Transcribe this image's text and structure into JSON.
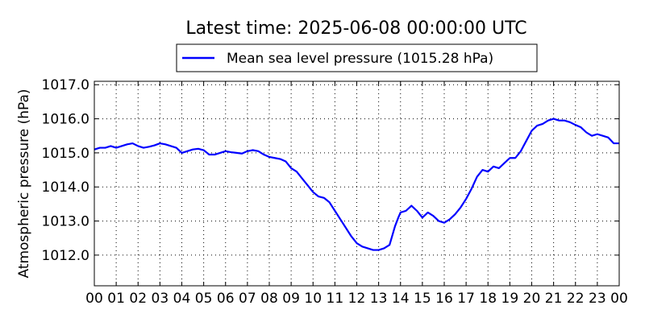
{
  "chart_data": {
    "type": "line",
    "title": "Latest time: 2025-06-08 00:00:00 UTC",
    "ylabel": "Atmospheric pressure (hPa)",
    "xlabel": "",
    "ylim": [
      1011.1,
      1017.1
    ],
    "xlim": [
      0,
      24
    ],
    "grid": true,
    "legend_position": "top-center, above plot",
    "x_tick_values": [
      0,
      1,
      2,
      3,
      4,
      5,
      6,
      7,
      8,
      9,
      10,
      11,
      12,
      13,
      14,
      15,
      16,
      17,
      18,
      19,
      20,
      21,
      22,
      23,
      24
    ],
    "x_tick_labels": [
      "00",
      "01",
      "02",
      "03",
      "04",
      "05",
      "06",
      "07",
      "08",
      "09",
      "10",
      "11",
      "12",
      "13",
      "14",
      "15",
      "16",
      "17",
      "18",
      "19",
      "20",
      "21",
      "22",
      "23",
      "00"
    ],
    "y_tick_values": [
      1012.0,
      1013.0,
      1014.0,
      1015.0,
      1016.0,
      1017.0
    ],
    "y_tick_labels": [
      "1012.0",
      "1013.0",
      "1014.0",
      "1015.0",
      "1016.0",
      "1017.0"
    ],
    "series": [
      {
        "name": "Mean sea level pressure (1015.28 hPa)",
        "color": "#0000ff",
        "x": [
          0,
          0.25,
          0.5,
          0.75,
          1,
          1.25,
          1.5,
          1.75,
          2,
          2.25,
          2.5,
          2.75,
          3,
          3.25,
          3.5,
          3.75,
          4,
          4.25,
          4.5,
          4.75,
          5,
          5.25,
          5.5,
          5.75,
          6,
          6.25,
          6.5,
          6.75,
          7,
          7.25,
          7.5,
          7.75,
          8,
          8.25,
          8.5,
          8.75,
          9,
          9.25,
          9.5,
          9.75,
          10,
          10.25,
          10.5,
          10.75,
          11,
          11.25,
          11.5,
          11.75,
          12,
          12.25,
          12.5,
          12.75,
          13,
          13.25,
          13.5,
          13.75,
          13.9,
          14,
          14.25,
          14.5,
          14.75,
          15,
          15.25,
          15.5,
          15.75,
          16,
          16.25,
          16.5,
          16.75,
          17,
          17.25,
          17.5,
          17.75,
          18,
          18.25,
          18.5,
          18.75,
          19,
          19.25,
          19.5,
          19.75,
          20,
          20.25,
          20.5,
          20.75,
          21,
          21.25,
          21.5,
          21.75,
          22,
          22.25,
          22.5,
          22.75,
          23,
          23.25,
          23.5,
          23.75,
          24
        ],
        "values": [
          1015.1,
          1015.15,
          1015.15,
          1015.2,
          1015.15,
          1015.2,
          1015.25,
          1015.28,
          1015.2,
          1015.15,
          1015.18,
          1015.22,
          1015.28,
          1015.25,
          1015.2,
          1015.15,
          1015.0,
          1015.05,
          1015.1,
          1015.12,
          1015.08,
          1014.95,
          1014.95,
          1015.0,
          1015.05,
          1015.02,
          1015.0,
          1014.98,
          1015.05,
          1015.08,
          1015.05,
          1014.95,
          1014.88,
          1014.85,
          1014.82,
          1014.75,
          1014.55,
          1014.45,
          1014.25,
          1014.05,
          1013.85,
          1013.72,
          1013.68,
          1013.55,
          1013.3,
          1013.05,
          1012.8,
          1012.55,
          1012.35,
          1012.25,
          1012.2,
          1012.15,
          1012.15,
          1012.2,
          1012.3,
          1012.85,
          1013.1,
          1013.25,
          1013.3,
          1013.45,
          1013.3,
          1013.1,
          1013.25,
          1013.15,
          1013.0,
          1012.95,
          1013.05,
          1013.2,
          1013.4,
          1013.65,
          1013.95,
          1014.3,
          1014.5,
          1014.45,
          1014.6,
          1014.55,
          1014.7,
          1014.85,
          1014.85,
          1015.05,
          1015.35,
          1015.65,
          1015.8,
          1015.85,
          1015.95,
          1016.0,
          1015.95,
          1015.95,
          1015.9,
          1015.82,
          1015.75,
          1015.6,
          1015.5,
          1015.55,
          1015.5,
          1015.45,
          1015.28,
          1015.28
        ]
      }
    ]
  }
}
